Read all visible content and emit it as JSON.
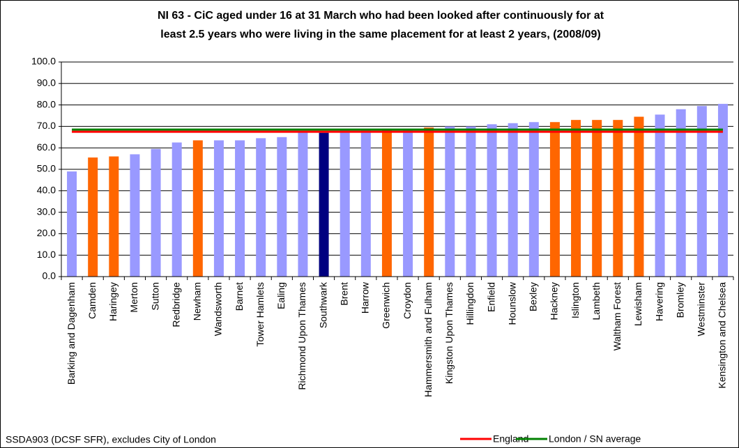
{
  "chart_data": {
    "type": "bar",
    "title": [
      "NI 63 - CiC aged under 16 at 31 March who had been looked after continuously for at",
      "least 2.5 years who were living in the same placement for at least 2 years, (2008/09)"
    ],
    "source": "SSDA903 (DCSF SFR), excludes City of London",
    "categories": [
      "Barking and Dagenham",
      "Camden",
      "Haringey",
      "Merton",
      "Sutton",
      "Redbridge",
      "Newham",
      "Wandsworth",
      "Barnet",
      "Tower Hamlets",
      "Ealing",
      "Richmond Upon Thames",
      "Southwark",
      "Brent",
      "Harrow",
      "Greenwich",
      "Croydon",
      "Hammersmith and Fulham",
      "Kingston Upon Thames",
      "Hillingdon",
      "Enfield",
      "Hounslow",
      "Bexley",
      "Hackney",
      "Islington",
      "Lambeth",
      "Waltham Forest",
      "Lewisham",
      "Havering",
      "Bromley",
      "Westminster",
      "Kensington and Chelsea"
    ],
    "values": [
      49,
      55.5,
      56,
      57,
      59.5,
      62.5,
      63.5,
      63.5,
      63.5,
      64.5,
      65,
      67.5,
      67,
      68,
      68,
      69,
      69,
      69.5,
      70,
      70,
      71,
      71.5,
      72,
      72,
      73,
      73,
      73,
      74.5,
      75.5,
      78,
      79.5,
      80.5
    ],
    "colors": [
      "#9999ff",
      "#ff6600",
      "#ff6600",
      "#9999ff",
      "#9999ff",
      "#9999ff",
      "#ff6600",
      "#9999ff",
      "#9999ff",
      "#9999ff",
      "#9999ff",
      "#9999ff",
      "#000080",
      "#9999ff",
      "#9999ff",
      "#ff6600",
      "#9999ff",
      "#ff6600",
      "#9999ff",
      "#9999ff",
      "#9999ff",
      "#9999ff",
      "#9999ff",
      "#ff6600",
      "#ff6600",
      "#ff6600",
      "#ff6600",
      "#ff6600",
      "#9999ff",
      "#9999ff",
      "#9999ff",
      "#9999ff"
    ],
    "reference_lines": [
      {
        "name": "England",
        "color": "#ff0000",
        "value": 67.5
      },
      {
        "name": "London / SN average",
        "color": "#008000",
        "value": 68.5
      }
    ],
    "ylim": [
      0,
      100
    ],
    "yticks": [
      {
        "value": 0,
        "label": "0.0"
      },
      {
        "value": 10,
        "label": "10.0"
      },
      {
        "value": 20,
        "label": "20.0"
      },
      {
        "value": 30,
        "label": "30.0"
      },
      {
        "value": 40,
        "label": "40.0"
      },
      {
        "value": 50,
        "label": "50.0"
      },
      {
        "value": 60,
        "label": "60.0"
      },
      {
        "value": 70,
        "label": "70.0"
      },
      {
        "value": 80,
        "label": "80.0"
      },
      {
        "value": 90,
        "label": "90.0"
      },
      {
        "value": 100,
        "label": "100.0"
      }
    ],
    "grid": true
  }
}
